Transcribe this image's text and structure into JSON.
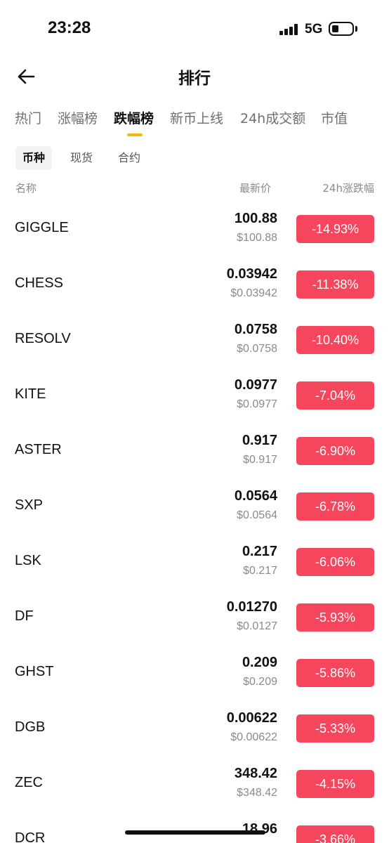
{
  "status_bar": {
    "time": "23:28",
    "network": "5G"
  },
  "header": {
    "title": "排行",
    "back_icon": "arrow-left-icon"
  },
  "tabs": [
    {
      "label": "热门",
      "active": false
    },
    {
      "label": "涨幅榜",
      "active": false
    },
    {
      "label": "跌幅榜",
      "active": true
    },
    {
      "label": "新币上线",
      "active": false
    },
    {
      "label": "24h成交额",
      "active": false
    },
    {
      "label": "市值",
      "active": false
    }
  ],
  "subtabs": [
    {
      "label": "币种",
      "active": true
    },
    {
      "label": "现货",
      "active": false
    },
    {
      "label": "合约",
      "active": false
    }
  ],
  "columns": {
    "name": "名称",
    "price": "最新价",
    "change": "24h涨跌幅"
  },
  "colors": {
    "accent": "#f0b90b",
    "down": "#f6465d"
  },
  "rows": [
    {
      "name": "GIGGLE",
      "price": "100.88",
      "usd": "$100.88",
      "change": "-14.93%"
    },
    {
      "name": "CHESS",
      "price": "0.03942",
      "usd": "$0.03942",
      "change": "-11.38%"
    },
    {
      "name": "RESOLV",
      "price": "0.0758",
      "usd": "$0.0758",
      "change": "-10.40%"
    },
    {
      "name": "KITE",
      "price": "0.0977",
      "usd": "$0.0977",
      "change": "-7.04%"
    },
    {
      "name": "ASTER",
      "price": "0.917",
      "usd": "$0.917",
      "change": "-6.90%"
    },
    {
      "name": "SXP",
      "price": "0.0564",
      "usd": "$0.0564",
      "change": "-6.78%"
    },
    {
      "name": "LSK",
      "price": "0.217",
      "usd": "$0.217",
      "change": "-6.06%"
    },
    {
      "name": "DF",
      "price": "0.01270",
      "usd": "$0.0127",
      "change": "-5.93%"
    },
    {
      "name": "GHST",
      "price": "0.209",
      "usd": "$0.209",
      "change": "-5.86%"
    },
    {
      "name": "DGB",
      "price": "0.00622",
      "usd": "$0.00622",
      "change": "-5.33%"
    },
    {
      "name": "ZEC",
      "price": "348.42",
      "usd": "$348.42",
      "change": "-4.15%"
    },
    {
      "name": "DCR",
      "price": "18.96",
      "usd": "",
      "change": "-3.66%"
    }
  ]
}
